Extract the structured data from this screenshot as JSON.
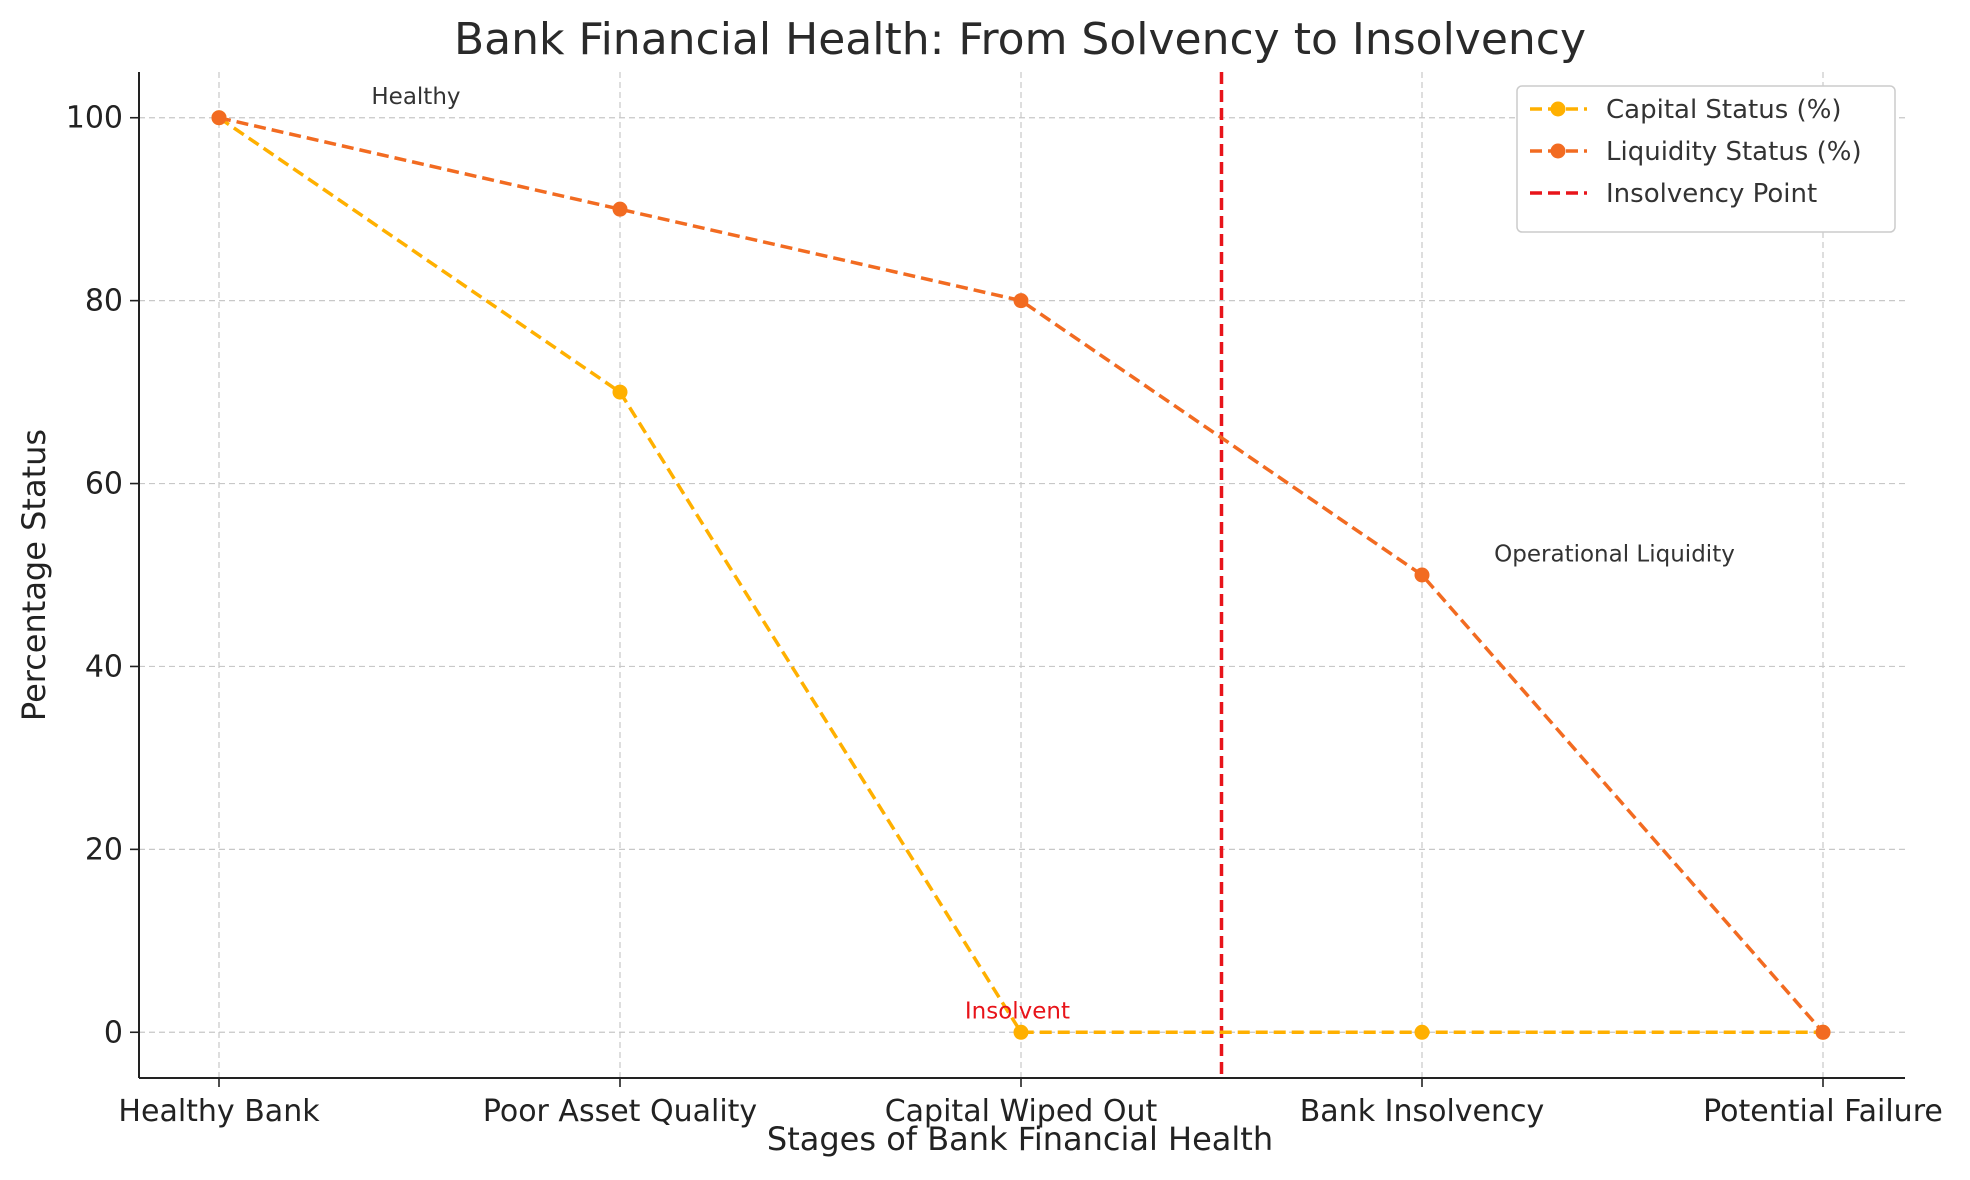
{
  "chart_data": {
    "type": "line",
    "title": "Bank Financial Health: From Solvency to Insolvency",
    "xlabel": "Stages of Bank Financial Health",
    "ylabel": "Percentage Status",
    "categories": [
      "Healthy Bank",
      "Poor Asset Quality",
      "Capital Wiped Out",
      "Bank Insolvency",
      "Potential Failure"
    ],
    "ylim": [
      -5,
      105
    ],
    "yticks": [
      0,
      20,
      40,
      60,
      80,
      100
    ],
    "grid": true,
    "legend_position": "top-right",
    "series": [
      {
        "name": "Capital Status (%)",
        "values": [
          100,
          70,
          0,
          0,
          0
        ],
        "color": "#FFB000",
        "style": "dashed",
        "marker": "circle"
      },
      {
        "name": "Liquidity Status (%)",
        "values": [
          100,
          90,
          80,
          50,
          0
        ],
        "color": "#F26B21",
        "style": "dashed",
        "marker": "circle"
      }
    ],
    "vlines": [
      {
        "name": "Insolvency Point",
        "x": 2.5,
        "color": "#E8141A",
        "style": "dashed"
      }
    ],
    "annotations": [
      {
        "text": "Healthy",
        "x": 0.38,
        "y": 101.5,
        "color": "#333333"
      },
      {
        "text": "Insolvent",
        "x": 1.86,
        "y": 1.5,
        "color": "#E8141A"
      },
      {
        "text": "Operational Liquidity",
        "x": 3.18,
        "y": 51.5,
        "color": "#333333"
      }
    ]
  }
}
